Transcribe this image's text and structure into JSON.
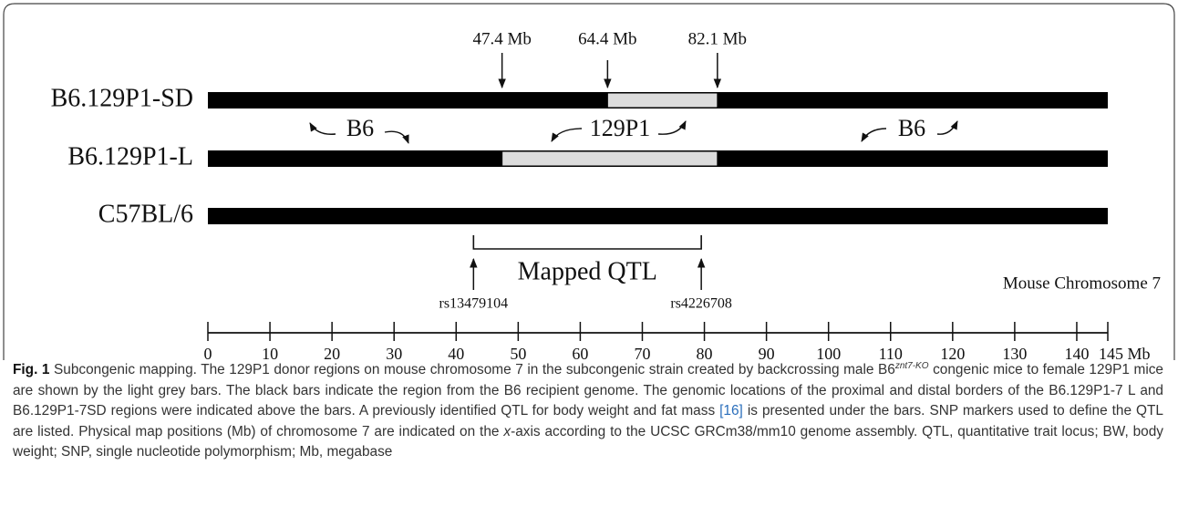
{
  "figure": {
    "markers": [
      {
        "value": 47.4,
        "label": "47.4 Mb"
      },
      {
        "value": 64.4,
        "label": "64.4 Mb"
      },
      {
        "value": 82.1,
        "label": "82.1 Mb"
      }
    ],
    "strains": [
      {
        "name": "B6.129P1-SD",
        "donor": [
          64.4,
          82.1
        ]
      },
      {
        "name": "B6.129P1-L",
        "donor": [
          47.4,
          82.1
        ]
      },
      {
        "name": "C57BL/6"
      }
    ],
    "region_labels": [
      "B6",
      "129P1",
      "B6"
    ],
    "qtl": {
      "label": "Mapped QTL",
      "start": {
        "value": 42.8,
        "label": "rs13479104"
      },
      "end": {
        "value": 79.5,
        "label": "rs4226708"
      }
    },
    "chromosome_label": "Mouse Chromosome 7",
    "axis": {
      "xlim": [
        0,
        145
      ],
      "xticks": [
        0,
        10,
        20,
        30,
        40,
        50,
        60,
        70,
        80,
        90,
        100,
        110,
        120,
        130,
        140,
        {
          "value": 145,
          "label": "145 Mb"
        }
      ]
    }
  },
  "caption": {
    "label": "Fig. 1",
    "text_1": "Subcongenic mapping. The 129P1 donor regions on mouse chromosome 7 in the subcongenic strain created by backcrossing male B6",
    "superscript": "znt7-KO",
    "text_2": " congenic mice to female 129P1 mice are shown by the light grey bars. The black bars indicate the region from the B6 recipient genome. The genomic locations of the proximal and distal borders of the B6.129P1-7 L and B6.129P1-7SD regions were indicated above the bars. A previously identified QTL for body weight and fat mass ",
    "reference": "[16]",
    "text_3": " is presented under the bars. SNP markers used to define the QTL are listed. Physical map positions (Mb) of chromosome 7 are indicated on the ",
    "italic": "x",
    "text_4": "-axis according to the UCSC GRCm38/mm10 genome assembly. QTL, quantitative trait locus; BW, body weight; SNP, single nucleotide polymorphism; Mb, megabase"
  }
}
